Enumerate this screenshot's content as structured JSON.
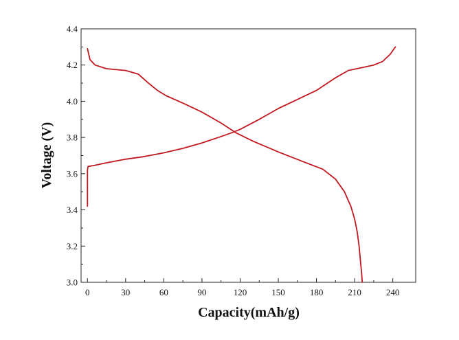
{
  "chart_data": {
    "type": "line",
    "title": "",
    "xlabel": "Capacity(mAh/g)",
    "ylabel": "Voltage (V)",
    "xlim": [
      -5,
      258
    ],
    "ylim": [
      3.0,
      4.4
    ],
    "xticks": [
      0,
      30,
      60,
      90,
      120,
      150,
      180,
      210,
      240
    ],
    "yticks": [
      3.0,
      3.2,
      3.4,
      3.6,
      3.8,
      4.0,
      4.2,
      4.4
    ],
    "ytick_labels": [
      "3.0",
      "3.2",
      "3.4",
      "3.6",
      "3.8",
      "4.0",
      "4.2",
      "4.4"
    ],
    "grid": false,
    "line_color": "#c0181e",
    "series": [
      {
        "x": [
          0,
          0,
          0.5,
          5,
          15,
          30,
          45,
          60,
          75,
          90,
          105,
          115,
          120,
          135,
          150,
          165,
          180,
          195,
          205,
          215,
          225,
          232,
          238,
          242
        ],
        "y": [
          3.42,
          3.62,
          3.64,
          3.645,
          3.66,
          3.68,
          3.695,
          3.715,
          3.74,
          3.77,
          3.805,
          3.83,
          3.845,
          3.9,
          3.96,
          4.01,
          4.06,
          4.13,
          4.17,
          4.185,
          4.2,
          4.22,
          4.26,
          4.3
        ]
      },
      {
        "x": [
          0,
          2,
          6,
          15,
          30,
          40,
          48,
          55,
          62,
          75,
          90,
          105,
          117,
          130,
          150,
          170,
          185,
          195,
          202,
          207,
          210,
          212,
          213.5,
          214.5,
          215.5,
          216
        ],
        "y": [
          4.29,
          4.23,
          4.2,
          4.18,
          4.17,
          4.15,
          4.1,
          4.06,
          4.03,
          3.99,
          3.94,
          3.88,
          3.825,
          3.78,
          3.72,
          3.665,
          3.625,
          3.57,
          3.5,
          3.42,
          3.35,
          3.28,
          3.2,
          3.12,
          3.05,
          3.0
        ]
      }
    ]
  }
}
